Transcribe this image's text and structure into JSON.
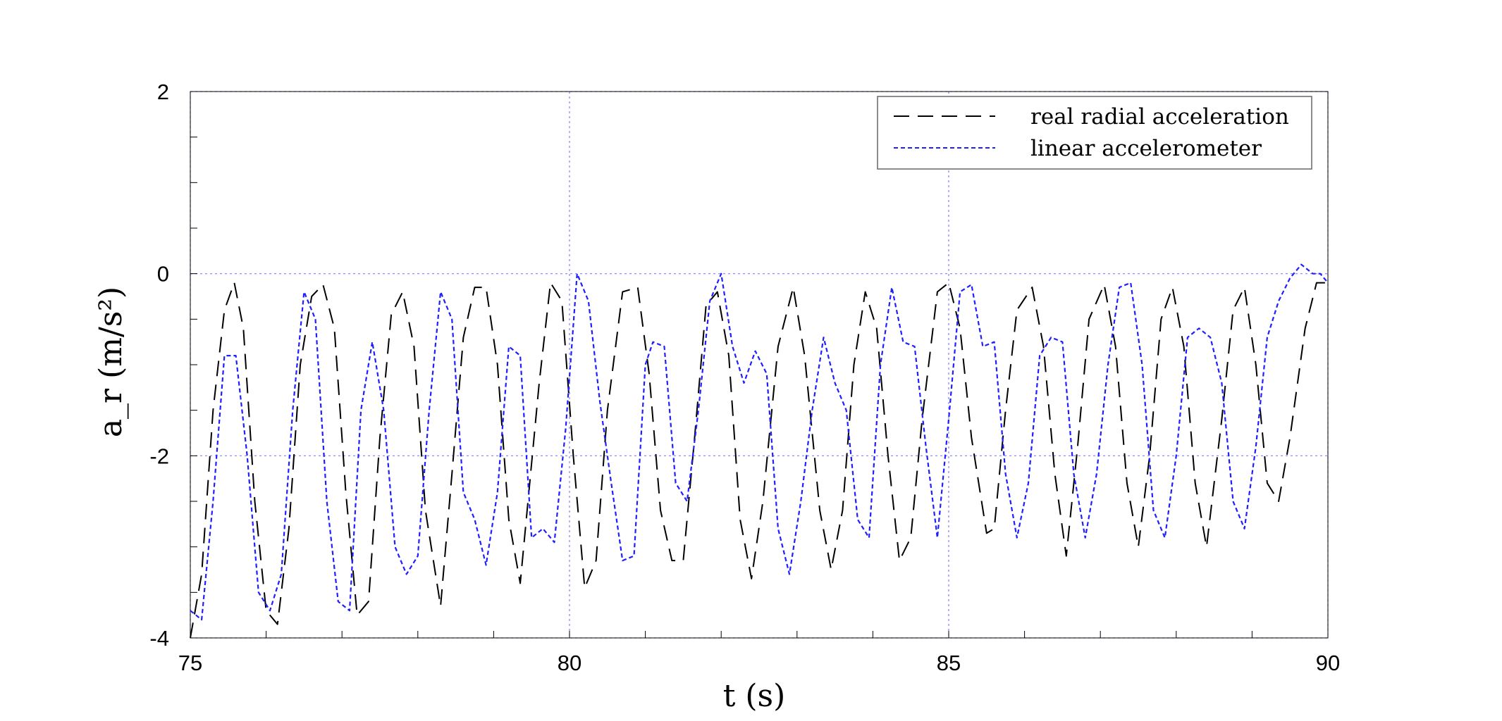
{
  "chart_data": {
    "type": "line",
    "xlabel": "t (s)",
    "ylabel": "a_r (m/s²)",
    "xlim": [
      75,
      90
    ],
    "ylim": [
      -4,
      2
    ],
    "xticks": [
      75,
      80,
      85,
      90
    ],
    "yticks": [
      -4,
      -2,
      0,
      2
    ],
    "grid": true,
    "legend_position": "top-right",
    "series": [
      {
        "name": "real radial acceleration",
        "color": "#000000",
        "style": "long-dash",
        "x": [
          75.0,
          75.15,
          75.3,
          75.45,
          75.58,
          75.7,
          75.85,
          76.0,
          76.15,
          76.3,
          76.45,
          76.6,
          76.75,
          76.9,
          77.05,
          77.2,
          77.35,
          77.5,
          77.65,
          77.8,
          77.95,
          78.1,
          78.3,
          78.45,
          78.6,
          78.75,
          78.9,
          79.05,
          79.2,
          79.35,
          79.6,
          79.75,
          79.9,
          80.05,
          80.2,
          80.35,
          80.5,
          80.7,
          80.9,
          81.05,
          81.2,
          81.35,
          81.5,
          81.65,
          81.8,
          81.95,
          82.1,
          82.25,
          82.4,
          82.55,
          82.75,
          82.95,
          83.1,
          83.3,
          83.45,
          83.6,
          83.75,
          83.9,
          84.05,
          84.2,
          84.35,
          84.5,
          84.65,
          84.85,
          85.0,
          85.15,
          85.3,
          85.5,
          85.6,
          85.75,
          85.9,
          86.1,
          86.25,
          86.4,
          86.55,
          86.7,
          86.85,
          87.05,
          87.2,
          87.35,
          87.5,
          87.65,
          87.8,
          87.95,
          88.1,
          88.25,
          88.4,
          88.6,
          88.75,
          88.9,
          89.05,
          89.2,
          89.35,
          89.5,
          89.7,
          89.85,
          90.0
        ],
        "values": [
          -4.0,
          -3.3,
          -1.5,
          -0.4,
          -0.1,
          -0.6,
          -2.5,
          -3.7,
          -3.85,
          -2.8,
          -1.0,
          -0.25,
          -0.12,
          -0.6,
          -2.4,
          -3.75,
          -3.6,
          -1.8,
          -0.45,
          -0.2,
          -0.8,
          -2.6,
          -3.65,
          -2.2,
          -0.7,
          -0.15,
          -0.15,
          -1.0,
          -2.7,
          -3.4,
          -1.2,
          -0.1,
          -0.3,
          -2.0,
          -3.45,
          -3.15,
          -1.5,
          -0.2,
          -0.15,
          -1.1,
          -2.6,
          -3.15,
          -3.15,
          -1.8,
          -0.35,
          -0.2,
          -0.9,
          -2.7,
          -3.35,
          -2.5,
          -0.8,
          -0.15,
          -0.9,
          -2.6,
          -3.25,
          -2.6,
          -1.0,
          -0.2,
          -0.6,
          -2.0,
          -3.15,
          -2.9,
          -1.6,
          -0.2,
          -0.1,
          -0.6,
          -1.8,
          -2.85,
          -2.8,
          -1.5,
          -0.4,
          -0.15,
          -0.8,
          -2.2,
          -3.1,
          -1.9,
          -0.5,
          -0.12,
          -0.8,
          -2.3,
          -3.0,
          -2.0,
          -0.5,
          -0.15,
          -0.8,
          -2.3,
          -3.0,
          -1.6,
          -0.4,
          -0.15,
          -1.0,
          -2.3,
          -2.5,
          -1.8,
          -0.6,
          -0.1,
          -0.1
        ]
      },
      {
        "name": "linear accelerometer",
        "color": "#1f1fff",
        "style": "short-dash",
        "x": [
          75.0,
          75.15,
          75.3,
          75.45,
          75.6,
          75.75,
          75.9,
          76.05,
          76.2,
          76.35,
          76.5,
          76.65,
          76.8,
          76.95,
          77.1,
          77.25,
          77.4,
          77.55,
          77.7,
          77.85,
          78.0,
          78.15,
          78.3,
          78.45,
          78.6,
          78.75,
          78.9,
          79.05,
          79.2,
          79.35,
          79.5,
          79.65,
          79.8,
          79.95,
          80.1,
          80.25,
          80.4,
          80.55,
          80.7,
          80.85,
          81.0,
          81.1,
          81.25,
          81.4,
          81.55,
          81.7,
          81.85,
          82.0,
          82.15,
          82.3,
          82.45,
          82.6,
          82.75,
          82.9,
          83.05,
          83.2,
          83.35,
          83.5,
          83.65,
          83.8,
          83.95,
          84.1,
          84.25,
          84.4,
          84.55,
          84.7,
          84.85,
          85.0,
          85.15,
          85.3,
          85.45,
          85.6,
          85.75,
          85.9,
          86.05,
          86.2,
          86.35,
          86.5,
          86.65,
          86.8,
          86.95,
          87.1,
          87.25,
          87.4,
          87.55,
          87.7,
          87.85,
          88.0,
          88.15,
          88.3,
          88.45,
          88.6,
          88.75,
          88.9,
          89.05,
          89.2,
          89.35,
          89.5,
          89.65,
          89.8,
          89.9,
          90.0
        ],
        "values": [
          -3.7,
          -3.8,
          -2.5,
          -0.9,
          -0.9,
          -2.0,
          -3.5,
          -3.7,
          -3.3,
          -1.5,
          -0.2,
          -0.5,
          -2.5,
          -3.6,
          -3.7,
          -1.5,
          -0.75,
          -1.5,
          -3.0,
          -3.3,
          -3.1,
          -1.5,
          -0.2,
          -0.5,
          -2.4,
          -2.7,
          -3.2,
          -2.4,
          -0.8,
          -0.9,
          -2.9,
          -2.8,
          -2.95,
          -1.7,
          0.0,
          -0.3,
          -1.4,
          -2.3,
          -3.15,
          -3.1,
          -1.0,
          -0.75,
          -0.8,
          -2.3,
          -2.5,
          -1.5,
          -0.3,
          0.0,
          -0.8,
          -1.2,
          -0.85,
          -1.1,
          -2.8,
          -3.3,
          -2.5,
          -1.5,
          -0.7,
          -1.2,
          -1.5,
          -2.7,
          -2.9,
          -1.0,
          -0.15,
          -0.75,
          -0.8,
          -1.9,
          -2.9,
          -1.6,
          -0.2,
          -0.12,
          -0.8,
          -0.75,
          -2.2,
          -2.9,
          -2.3,
          -0.9,
          -0.7,
          -0.75,
          -2.2,
          -2.9,
          -2.2,
          -1.0,
          -0.15,
          -0.1,
          -1.0,
          -2.6,
          -2.9,
          -2.0,
          -0.7,
          -0.6,
          -0.7,
          -1.2,
          -2.5,
          -2.8,
          -1.9,
          -0.7,
          -0.3,
          -0.05,
          0.1,
          0.0,
          0.0,
          -0.1
        ]
      }
    ]
  }
}
